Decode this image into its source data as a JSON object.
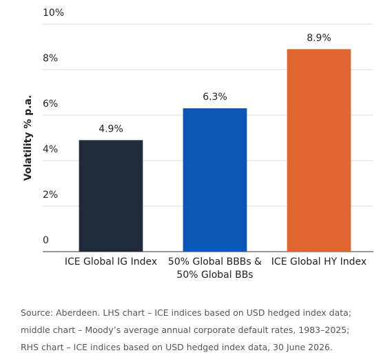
{
  "chart_data": {
    "type": "bar",
    "y_label": "Volatility % p.a.",
    "categories": [
      "ICE Global IG Index",
      "50% Global BBBs & 50% Global BBs",
      "ICE Global HY Index"
    ],
    "values": [
      4.9,
      6.3,
      8.9
    ],
    "value_labels": [
      "4.9%",
      "6.3%",
      "8.9%"
    ],
    "colors": [
      "#1f2b3b",
      "#0a57b6",
      "#e06631"
    ],
    "ylim": [
      0,
      10
    ],
    "yticks": [
      0,
      {
        "value": 2,
        "label": "2%"
      },
      {
        "value": 4,
        "label": "4%"
      },
      {
        "value": 6,
        "label": "6%"
      },
      {
        "value": 8,
        "label": "8%"
      },
      {
        "value": 10,
        "label": "10%"
      }
    ],
    "grid": true,
    "source": [
      "Source: Aberdeen. LHS chart – ICE indices based on USD hedged index data;",
      "middle chart – Moody’s average annual corporate default rates, 1983–2025;",
      "RHS chart – ICE indices based on USD hedged index data, 30 June 2026."
    ]
  }
}
